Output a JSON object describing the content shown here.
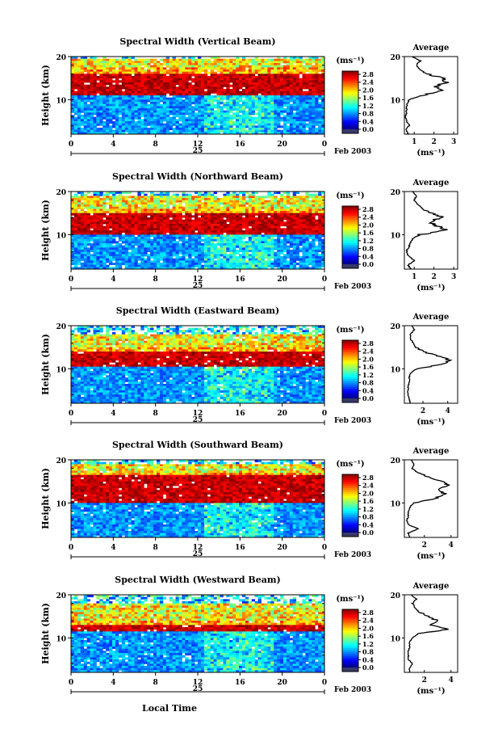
{
  "figure": {
    "panels": [
      {
        "title": "Spectral Width (Vertical Beam)",
        "average_xticks": [
          "1",
          "2",
          "3"
        ]
      },
      {
        "title": "Spectral Width (Northward Beam)",
        "average_xticks": [
          "1",
          "2",
          "3"
        ]
      },
      {
        "title": "Spectral Width (Eastward Beam)",
        "average_xticks": [
          "2",
          "4"
        ]
      },
      {
        "title": "Spectral Width (Southward Beam)",
        "average_xticks": [
          "2",
          "4"
        ]
      },
      {
        "title": "Spectral Width (Westward Beam)",
        "average_xticks": [
          "2",
          "4"
        ]
      }
    ],
    "ylabel": "Height (km)",
    "y_ticks": [
      "20",
      "10"
    ],
    "x_ticks": [
      "0",
      "4",
      "8",
      "12",
      "16",
      "20",
      "0"
    ],
    "day_label": "25",
    "date_label": "Feb 2003",
    "colorbar_unit": "(ms⁻¹)",
    "colorbar_ticks": [
      "2.8",
      "2.4",
      "2.0",
      "1.6",
      "1.2",
      "0.8",
      "0.4",
      "0.0"
    ],
    "average_title": "Average",
    "average_unit": "(ms⁻¹)",
    "xlabel": "Local Time"
  },
  "chart_data": [
    {
      "type": "heatmap",
      "title": "Spectral Width (Vertical Beam)",
      "xlabel": "",
      "ylabel": "Height (km)",
      "x_range_hours": [
        0,
        24
      ],
      "ylim_km": [
        2,
        20
      ],
      "clim": [
        0.0,
        3.0
      ],
      "colorbar_unit": "ms-1",
      "strong_layer_km": [
        11,
        16
      ],
      "secondary_layer_km": [
        17.5,
        19.5
      ]
    },
    {
      "type": "line",
      "title": "Average",
      "xlabel": "(ms-1)",
      "ylim_km": [
        2,
        20
      ],
      "xlim": [
        0.5,
        3.2
      ],
      "heights_km": [
        2,
        3,
        4,
        5,
        6,
        7,
        8,
        9,
        10,
        11,
        12,
        13,
        14,
        15,
        16,
        17,
        18,
        19,
        20
      ],
      "values": [
        0.7,
        0.6,
        0.75,
        0.6,
        0.55,
        0.6,
        0.6,
        0.65,
        0.75,
        1.4,
        2.3,
        2.1,
        2.6,
        2.4,
        1.6,
        1.3,
        1.1,
        1.3,
        0.9
      ]
    },
    {
      "type": "heatmap",
      "title": "Spectral Width (Northward Beam)",
      "xlabel": "",
      "ylabel": "Height (km)",
      "x_range_hours": [
        0,
        24
      ],
      "ylim_km": [
        2,
        20
      ],
      "clim": [
        0.0,
        3.0
      ],
      "colorbar_unit": "ms-1",
      "strong_layer_km": [
        10,
        15
      ],
      "secondary_layer_km": [
        16,
        19
      ]
    },
    {
      "type": "line",
      "title": "Average",
      "xlabel": "(ms-1)",
      "ylim_km": [
        2,
        20
      ],
      "xlim": [
        0.5,
        3.2
      ],
      "heights_km": [
        2,
        3,
        4,
        5,
        6,
        7,
        8,
        9,
        10,
        11,
        12,
        13,
        14,
        15,
        16,
        17,
        18,
        19,
        20
      ],
      "values": [
        0.8,
        0.7,
        1.0,
        0.7,
        0.6,
        0.7,
        0.8,
        0.9,
        1.3,
        2.6,
        2.2,
        1.8,
        2.4,
        1.9,
        1.4,
        1.2,
        1.0,
        1.1,
        0.9
      ]
    },
    {
      "type": "heatmap",
      "title": "Spectral Width (Eastward Beam)",
      "xlabel": "",
      "ylabel": "Height (km)",
      "x_range_hours": [
        0,
        24
      ],
      "ylim_km": [
        2,
        20
      ],
      "clim": [
        0.0,
        3.0
      ],
      "colorbar_unit": "ms-1",
      "strong_layer_km": [
        10.5,
        14
      ],
      "secondary_layer_km": [
        15,
        18
      ]
    },
    {
      "type": "line",
      "title": "Average",
      "xlabel": "(ms-1)",
      "ylim_km": [
        2,
        20
      ],
      "xlim": [
        0.5,
        4.8
      ],
      "heights_km": [
        2,
        3,
        4,
        5,
        6,
        7,
        8,
        9,
        10,
        11,
        12,
        13,
        14,
        15,
        16,
        17,
        18,
        19,
        20
      ],
      "values": [
        1.0,
        0.9,
        0.8,
        0.8,
        0.8,
        0.9,
        0.9,
        1.0,
        1.5,
        3.5,
        4.2,
        3.2,
        2.0,
        1.4,
        1.2,
        1.0,
        1.0,
        1.3,
        1.1
      ]
    },
    {
      "type": "heatmap",
      "title": "Spectral Width (Southward Beam)",
      "xlabel": "",
      "ylabel": "Height (km)",
      "x_range_hours": [
        0,
        24
      ],
      "ylim_km": [
        2,
        20
      ],
      "clim": [
        0.0,
        3.0
      ],
      "colorbar_unit": "ms-1",
      "strong_layer_km": [
        10,
        16.5
      ],
      "secondary_layer_km": [
        17,
        19
      ]
    },
    {
      "type": "line",
      "title": "Average",
      "xlabel": "(ms-1)",
      "ylim_km": [
        2,
        20
      ],
      "xlim": [
        0.5,
        4.5
      ],
      "heights_km": [
        2,
        3,
        4,
        5,
        6,
        7,
        8,
        9,
        10,
        11,
        12,
        13,
        14,
        15,
        16,
        17,
        18,
        19,
        20
      ],
      "values": [
        0.9,
        0.8,
        1.5,
        0.8,
        0.7,
        0.8,
        0.8,
        0.9,
        1.2,
        2.8,
        3.6,
        3.0,
        3.8,
        3.4,
        2.3,
        1.5,
        1.1,
        1.2,
        1.0
      ]
    },
    {
      "type": "heatmap",
      "title": "Spectral Width (Westward Beam)",
      "xlabel": "Local Time",
      "ylabel": "Height (km)",
      "x_range_hours": [
        0,
        24
      ],
      "ylim_km": [
        2,
        20
      ],
      "clim": [
        0.0,
        3.0
      ],
      "colorbar_unit": "ms-1",
      "strong_layer_km": [
        11.5,
        13
      ],
      "secondary_layer_km": [
        14,
        18
      ]
    },
    {
      "type": "line",
      "title": "Average",
      "xlabel": "(ms-1)",
      "ylim_km": [
        2,
        20
      ],
      "xlim": [
        0.5,
        4.5
      ],
      "heights_km": [
        2,
        3,
        4,
        5,
        6,
        7,
        8,
        9,
        10,
        11,
        12,
        13,
        14,
        15,
        16,
        17,
        18,
        19,
        20
      ],
      "values": [
        0.9,
        0.9,
        1.1,
        0.8,
        0.8,
        0.8,
        0.9,
        0.9,
        1.1,
        1.6,
        3.8,
        2.6,
        3.0,
        2.2,
        1.6,
        1.3,
        1.1,
        1.4,
        1.0
      ]
    }
  ]
}
